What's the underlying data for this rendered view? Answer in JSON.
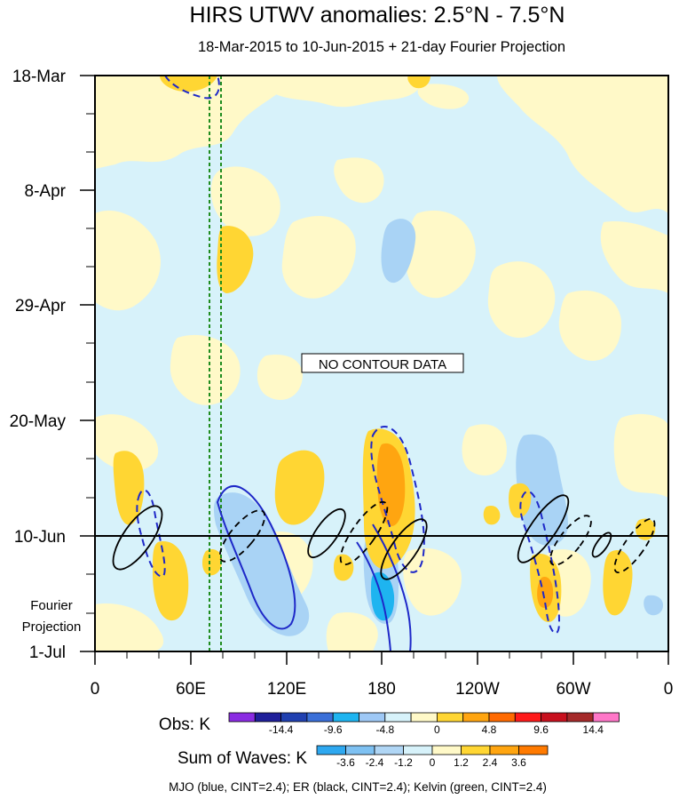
{
  "title": "HIRS UTWV anomalies: 2.5°N - 7.5°N",
  "subtitle": "18-Mar-2015 to 10-Jun-2015 + 21-day Fourier Projection",
  "no_data_label": "NO CONTOUR DATA",
  "fourier_label_line1": "Fourier",
  "fourier_label_line2": "Projection",
  "footer": "MJO (blue, CINT=2.4); ER (black, CINT=2.4); Kelvin (green, CINT=2.4)",
  "obs_legend": {
    "label": "Obs: K",
    "colors": [
      "#8a2be2",
      "#1f1f9a",
      "#2040b0",
      "#3a6fd8",
      "#1eb4f0",
      "#9ec8f5",
      "#d7f2fa",
      "#fff9c8",
      "#ffd633",
      "#ffa510",
      "#ff6a00",
      "#ff1a1a",
      "#c8101e",
      "#a52a2a",
      "#ff77c8"
    ],
    "ticks": [
      "-14.4",
      "-9.6",
      "-4.8",
      "0",
      "4.8",
      "9.6",
      "14.4"
    ]
  },
  "waves_legend": {
    "label": "Sum of Waves: K",
    "colors": [
      "#2ea8f0",
      "#7ec1f2",
      "#b0d6f5",
      "#d7f2fa",
      "#fff9c8",
      "#ffd633",
      "#ffa510",
      "#ff7a00"
    ],
    "ticks": [
      "-3.6",
      "-2.4",
      "-1.2",
      "0",
      "1.2",
      "2.4",
      "3.6"
    ]
  },
  "chart_data": {
    "type": "heatmap",
    "variable": "HIRS UTWV anomalies",
    "units": "K",
    "latitude_band": "2.5°N - 7.5°N",
    "x_axis": {
      "range": [
        "0",
        "0"
      ],
      "ticks": [
        "0",
        "60E",
        "120E",
        "180",
        "120W",
        "60W",
        "0"
      ]
    },
    "y_axis": {
      "range": [
        "18-Mar-2015",
        "1-Jul-2015"
      ],
      "ticks": [
        "18-Mar",
        "8-Apr",
        "29-Apr",
        "20-May",
        "10-Jun",
        "1-Jul"
      ],
      "reversed": true
    },
    "observation_end": "10-Jun-2015",
    "projection": "21-day Fourier Projection",
    "obs_contour_levels": [
      -14.4,
      -9.6,
      -4.8,
      0,
      4.8,
      9.6,
      14.4
    ],
    "wave_contour_levels": [
      -3.6,
      -2.4,
      -1.2,
      0,
      1.2,
      2.4,
      3.6
    ],
    "contours": [
      {
        "wave": "MJO",
        "color": "blue",
        "cint": 2.4
      },
      {
        "wave": "ER",
        "color": "black",
        "cint": 2.4
      },
      {
        "wave": "Kelvin",
        "color": "green",
        "cint": 2.4
      }
    ]
  }
}
